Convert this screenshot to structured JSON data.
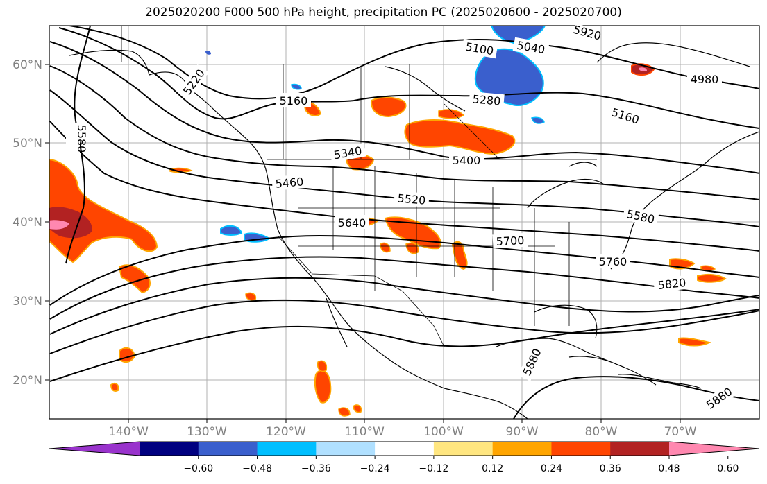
{
  "title": "2025020200 F000 500 hPa height, precipitation PC (2025020600 - 2025020700)",
  "lat_labels": [
    "60°N",
    "50°N",
    "40°N",
    "30°N",
    "20°N"
  ],
  "lon_labels": [
    "140°W",
    "130°W",
    "120°W",
    "110°W",
    "100°W",
    "90°W",
    "80°W",
    "70°W"
  ],
  "contour_labels": [
    "5220",
    "5160",
    "5100",
    "5040",
    "4980",
    "5280",
    "5160",
    "5340",
    "5400",
    "5460",
    "5520",
    "5580",
    "5580",
    "5640",
    "5700",
    "5760",
    "5820",
    "5880",
    "5880",
    "5920"
  ],
  "colorbar": {
    "tick_labels": [
      "−0.60",
      "−0.48",
      "−0.36",
      "−0.24",
      "−0.12",
      "0.12",
      "0.24",
      "0.36",
      "0.48",
      "0.60"
    ],
    "colors": [
      "#9933cc",
      "#000080",
      "#3a5fcd",
      "#00bfff",
      "#b0e0ff",
      "#ffffff",
      "#ffe680",
      "#ffa500",
      "#ff4500",
      "#b22222",
      "#ff88b0"
    ]
  }
}
